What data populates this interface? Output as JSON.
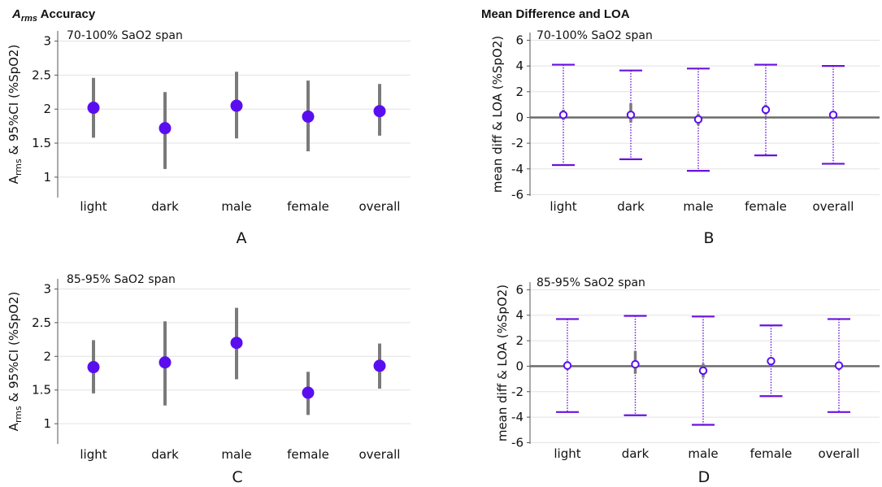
{
  "titles": {
    "left_main": "A",
    "left_sub": "rms",
    "left_rest": " Accuracy",
    "right": "Mean Difference and LOA"
  },
  "panel_labels": [
    "A",
    "B",
    "C",
    "D"
  ],
  "colors": {
    "marker": "#5a0ef0",
    "errorbar": "#7a7a7a",
    "loa": "#6a12e0",
    "zero_line": "#6b6b6b",
    "grid": "#e2e2e2",
    "axis": "#555555"
  },
  "chart_data": [
    {
      "id": "A",
      "type": "scatter",
      "subtitle": "70-100% SaO2 span",
      "ylabel_main": "A",
      "ylabel_sub": "rms",
      "ylabel_rest": " & 95%CI (%SpO2)",
      "categories": [
        "light",
        "dark",
        "male",
        "female",
        "overall"
      ],
      "values": [
        2.02,
        1.72,
        2.05,
        1.89,
        1.97
      ],
      "ci_low": [
        1.58,
        1.12,
        1.57,
        1.38,
        1.61
      ],
      "ci_high": [
        2.46,
        2.25,
        2.55,
        2.42,
        2.37
      ],
      "yticks": [
        1,
        1.5,
        2,
        2.5,
        3
      ],
      "ytick_labels": [
        "1",
        "1.5",
        "2",
        "2.5",
        "3"
      ],
      "ylim": [
        0.7,
        3.15
      ],
      "grid": true
    },
    {
      "id": "B",
      "type": "scatter",
      "subtitle": "70-100% SaO2 span",
      "ylabel": "mean diff & LOA (%SpO2)",
      "categories": [
        "light",
        "dark",
        "male",
        "female",
        "overall"
      ],
      "values": [
        0.2,
        0.2,
        -0.15,
        0.6,
        0.2
      ],
      "ci_low": [
        -0.2,
        -0.4,
        -0.6,
        0.2,
        0.0
      ],
      "ci_high": [
        0.6,
        1.1,
        0.3,
        1.0,
        0.4
      ],
      "loa_low": [
        -3.7,
        -3.25,
        -4.15,
        -2.95,
        -3.6
      ],
      "loa_high": [
        4.1,
        3.65,
        3.8,
        4.1,
        4.0
      ],
      "yticks": [
        -6,
        -4,
        -2,
        0,
        2,
        4,
        6
      ],
      "ytick_labels": [
        "-6",
        "-4",
        "-2",
        "0",
        "2",
        "4",
        "6"
      ],
      "ylim": [
        -6.1,
        6.6
      ],
      "grid": true
    },
    {
      "id": "C",
      "type": "scatter",
      "subtitle": "85-95% SaO2 span",
      "ylabel_main": "A",
      "ylabel_sub": "rms",
      "ylabel_rest": " & 95%CI (%SpO2)",
      "categories": [
        "light",
        "dark",
        "male",
        "female",
        "overall"
      ],
      "values": [
        1.84,
        1.91,
        2.2,
        1.46,
        1.86
      ],
      "ci_low": [
        1.45,
        1.27,
        1.66,
        1.13,
        1.52
      ],
      "ci_high": [
        2.24,
        2.52,
        2.72,
        1.77,
        2.19
      ],
      "yticks": [
        1,
        1.5,
        2,
        2.5,
        3
      ],
      "ytick_labels": [
        "1",
        "1.5",
        "2",
        "2.5",
        "3"
      ],
      "ylim": [
        0.7,
        3.15
      ],
      "grid": true
    },
    {
      "id": "D",
      "type": "scatter",
      "subtitle": "85-95% SaO2 span",
      "ylabel": "mean diff & LOA (%SpO2)",
      "categories": [
        "light",
        "dark",
        "male",
        "female",
        "overall"
      ],
      "values": [
        0.05,
        0.15,
        -0.35,
        0.4,
        0.05
      ],
      "ci_low": [
        -0.3,
        -0.6,
        -0.9,
        0.1,
        -0.3
      ],
      "ci_high": [
        0.4,
        1.2,
        0.2,
        0.7,
        0.3
      ],
      "loa_low": [
        -3.6,
        -3.85,
        -4.6,
        -2.35,
        -3.6
      ],
      "loa_high": [
        3.7,
        3.95,
        3.9,
        3.2,
        3.7
      ],
      "yticks": [
        -6,
        -4,
        -2,
        0,
        2,
        4,
        6
      ],
      "ytick_labels": [
        "-6",
        "-4",
        "-2",
        "0",
        "2",
        "4",
        "6"
      ],
      "ylim": [
        -6.1,
        6.6
      ],
      "grid": true
    }
  ]
}
